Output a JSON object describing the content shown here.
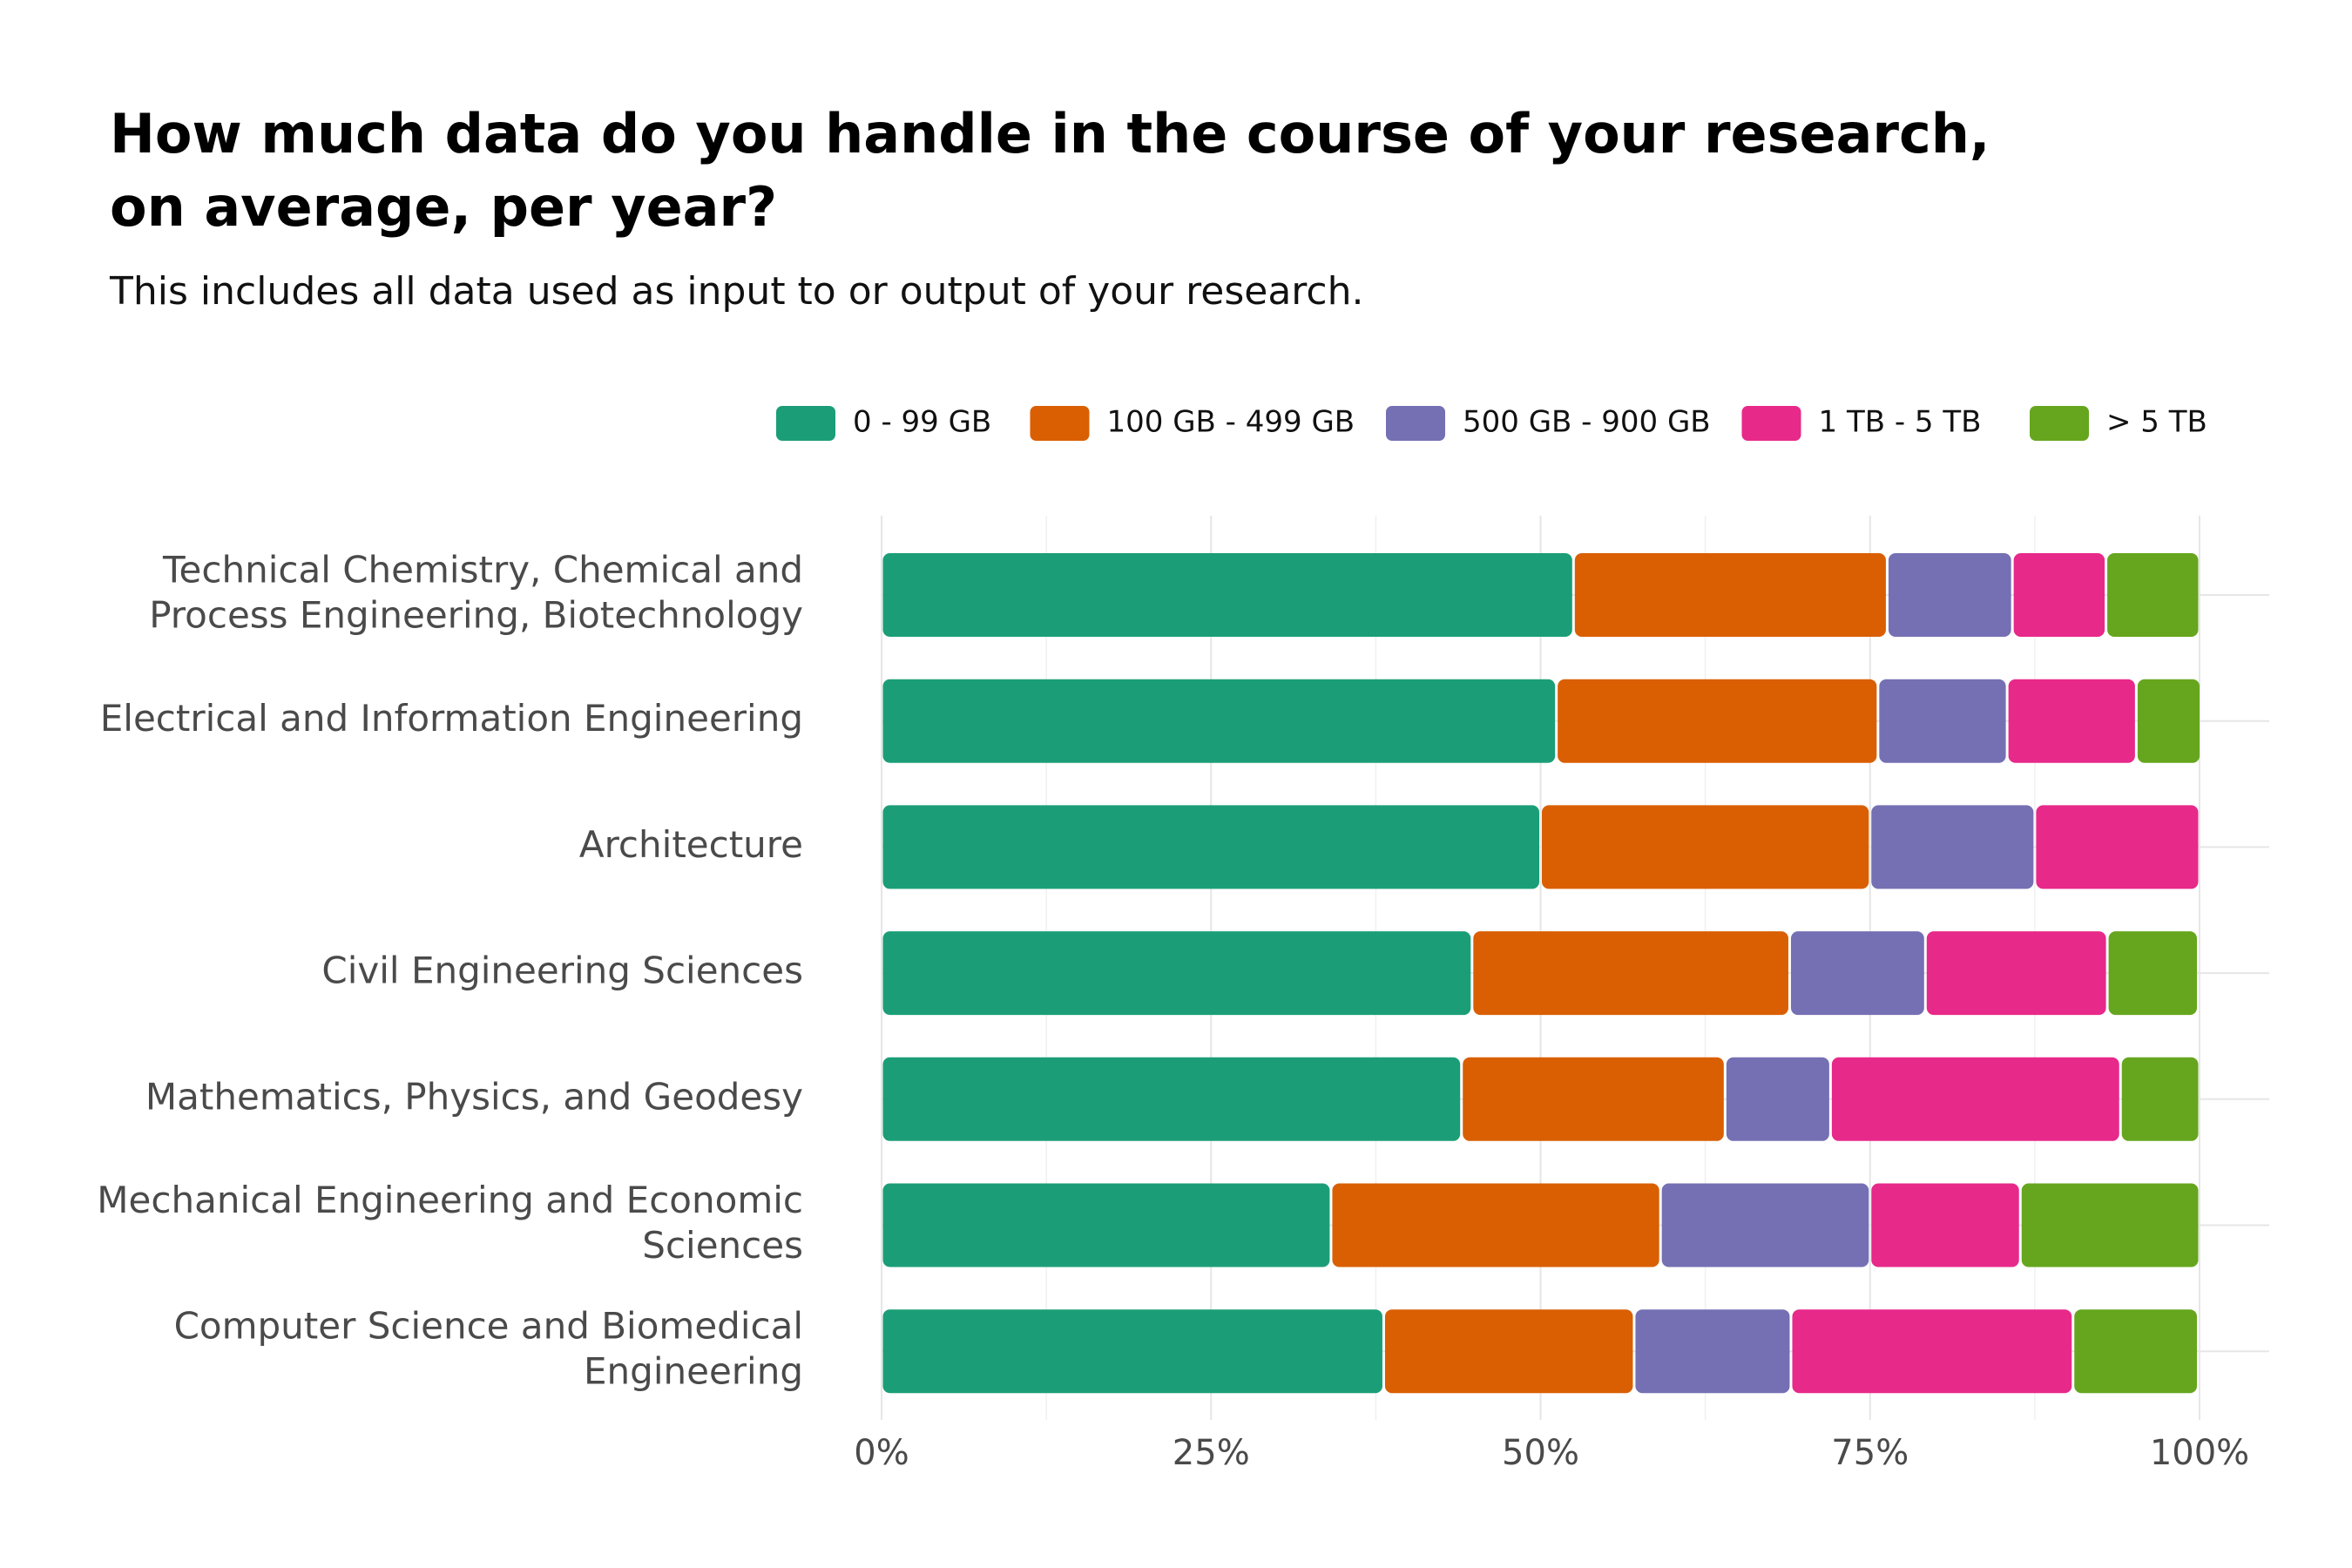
{
  "chart_data": {
    "type": "bar",
    "orientation": "horizontal",
    "stacked": true,
    "normalized": true,
    "title_lines": [
      "How much data do you handle in the course of your research,",
      "on average, per year?"
    ],
    "subtitle": "This includes all data used as input to or output of your research.",
    "xlabel": "",
    "ylabel": "",
    "xlim": [
      0,
      100
    ],
    "x_ticks": [
      0,
      25,
      50,
      75,
      100
    ],
    "x_tick_labels": [
      "0%",
      "25%",
      "50%",
      "75%",
      "100%"
    ],
    "grid": true,
    "legend_position": "top-right",
    "categories": [
      {
        "lines": [
          "Technical Chemistry, Chemical and",
          "Process Engineering, Biotechnology"
        ]
      },
      {
        "lines": [
          "Electrical and Information Engineering"
        ]
      },
      {
        "lines": [
          "Architecture"
        ]
      },
      {
        "lines": [
          "Civil Engineering Sciences"
        ]
      },
      {
        "lines": [
          "Mathematics, Physics, and Geodesy"
        ]
      },
      {
        "lines": [
          "Mechanical Engineering and Economic",
          "Sciences"
        ]
      },
      {
        "lines": [
          "Computer Science and Biomedical",
          "Engineering"
        ]
      }
    ],
    "series": [
      {
        "name": "0 - 99 GB",
        "color": "#1b9e77",
        "values": [
          52.5,
          51.2,
          50.0,
          44.8,
          44.0,
          34.1,
          38.1
        ]
      },
      {
        "name": "100 GB - 499 GB",
        "color": "#d95f02",
        "values": [
          23.8,
          24.4,
          25.0,
          24.1,
          20.0,
          25.0,
          19.0
        ]
      },
      {
        "name": "500 GB - 900 GB",
        "color": "#7570b3",
        "values": [
          9.5,
          9.8,
          12.5,
          10.3,
          8.0,
          15.9,
          11.9
        ]
      },
      {
        "name": "1 TB - 5 TB",
        "color": "#e7298a",
        "values": [
          7.1,
          9.8,
          12.5,
          13.8,
          22.0,
          11.4,
          21.4
        ]
      },
      {
        "name": "> 5 TB",
        "color": "#66a61e",
        "values": [
          7.1,
          4.9,
          0.0,
          6.9,
          6.0,
          13.6,
          9.5
        ]
      }
    ]
  }
}
